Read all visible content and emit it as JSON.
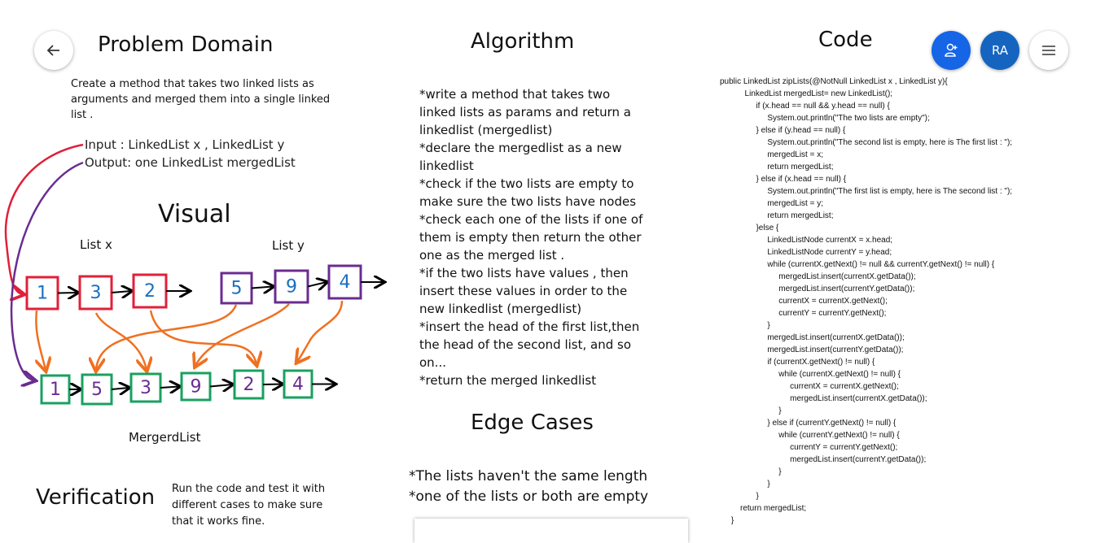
{
  "toolbar": {
    "avatar": "RA"
  },
  "problem_domain": {
    "title": "Problem Domain",
    "description": [
      "Create a method that takes two linked lists as",
      "arguments and merged them into a single linked",
      "list ."
    ],
    "input": "Input : LinkedList x , LinkedList y",
    "output": "Output: one LinkedList mergedList"
  },
  "visual": {
    "title": "Visual",
    "list_x": {
      "label": "List x",
      "nodes": [
        "1",
        "3",
        "2"
      ]
    },
    "list_y": {
      "label": "List y",
      "nodes": [
        "5",
        "9",
        "4"
      ]
    },
    "merged": {
      "label": "MergerdList",
      "nodes": [
        "1",
        "5",
        "3",
        "9",
        "2",
        "4"
      ]
    }
  },
  "verification": {
    "title": "Verification",
    "text": [
      "Run the code and test it with",
      "different cases to make sure",
      "that it works fine."
    ]
  },
  "algorithm": {
    "title": "Algorithm",
    "lines": [
      "*write a method that takes two",
      "linked lists as params and return a",
      "linkedlist (mergedlist)",
      "*declare the mergedlist as a new",
      "linkedlist",
      "*check if the two lists are empty to",
      "make sure the two lists have nodes",
      "*check each one of the lists if one of",
      "them is empty then return the other",
      "one as the merged list .",
      "*if the two lists have values , then",
      "insert these values in order to the",
      "new linkedlist (mergedlist)",
      "*insert the head of the first list,then",
      "the head of the second list, and so",
      "on...",
      "*return the merged linkedlist"
    ]
  },
  "edge_cases": {
    "title": "Edge Cases",
    "lines": [
      "*The lists haven't the same length",
      "*one of the lists or both are empty"
    ]
  },
  "code": {
    "title": "Code",
    "lines": [
      "public LinkedList zipLists(@NotNull LinkedList x , LinkedList y){",
      "           LinkedList mergedList= new LinkedList();",
      "                if (x.head == null && y.head == null) {",
      "                     System.out.println(\"The two lists are empty\");",
      "                } else if (y.head == null) {",
      "                     System.out.println(\"The second list is empty, here is The first list : \");",
      "                     mergedList = x;",
      "                     return mergedList;",
      "                } else if (x.head == null) {",
      "                     System.out.println(\"The first list is empty, here is The second list : \");",
      "                     mergedList = y;",
      "                     return mergedList;",
      "                }else {",
      "                     LinkedListNode currentX = x.head;",
      "                     LinkedListNode currentY = y.head;",
      "                     while (currentX.getNext() != null && currentY.getNext() != null) {",
      "                          mergedList.insert(currentX.getData());",
      "                          mergedList.insert(currentY.getData());",
      "                          currentX = currentX.getNext();",
      "                          currentY = currentY.getNext();",
      "                     }",
      "                     mergedList.insert(currentX.getData());",
      "                     mergedList.insert(currentY.getData());",
      "                     if (currentX.getNext() != null) {",
      "                          while (currentX.getNext() != null) {",
      "                               currentX = currentX.getNext();",
      "                               mergedList.insert(currentX.getData());",
      "                          }",
      "                     } else if (currentY.getNext() != null) {",
      "                          while (currentY.getNext() != null) {",
      "                               currentY = currentY.getNext();",
      "                               mergedList.insert(currentY.getData());",
      "                          }",
      "                     }",
      "                }",
      "         return mergedList;",
      "     }"
    ]
  }
}
